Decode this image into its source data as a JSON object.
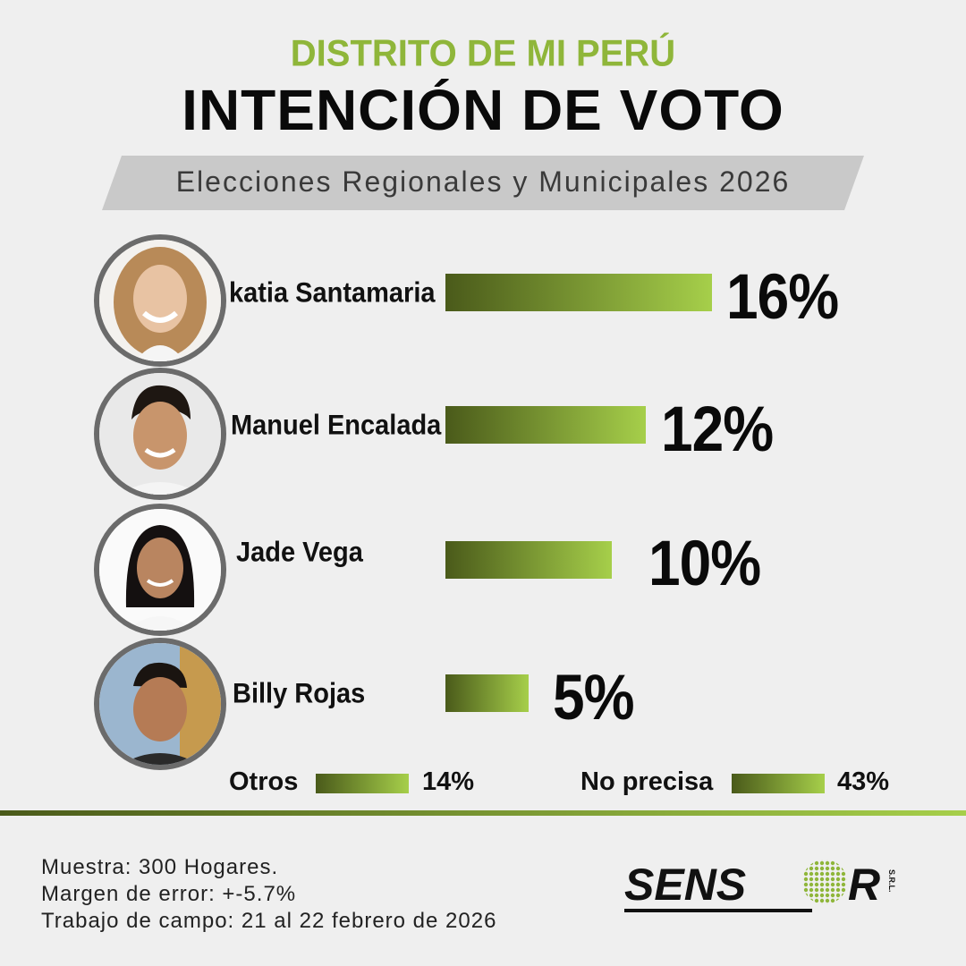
{
  "header": {
    "district": "DISTRITO DE MI PERÚ",
    "title": "INTENCIÓN DE VOTO",
    "banner": "Elecciones Regionales y Municipales 2026"
  },
  "colors": {
    "accent_green": "#8fb63a",
    "bar_dark": "#4a5a1a",
    "bar_light": "#a6cf4a"
  },
  "chart_data": {
    "type": "bar",
    "orientation": "horizontal",
    "categories": [
      "katia Santamaria",
      "Manuel Encalada",
      "Jade Vega",
      "Billy Rojas"
    ],
    "values": [
      16,
      12,
      10,
      5
    ],
    "labels": [
      "16%",
      "12%",
      "10%",
      "5%"
    ],
    "extra": [
      {
        "name": "Otros",
        "value": 14,
        "label": "14%"
      },
      {
        "name": "No precisa",
        "value": 43,
        "label": "43%"
      }
    ],
    "xlabel": "",
    "ylabel": ""
  },
  "footer": {
    "sample": "Muestra: 300 Hogares.",
    "margin": "Margen de error: +-5.7%",
    "fieldwork": "Trabajo de campo: 21 al 22 febrero de 2026"
  },
  "logo": {
    "text_left": "SENS",
    "text_right": "R",
    "suffix": "S.R.L."
  }
}
